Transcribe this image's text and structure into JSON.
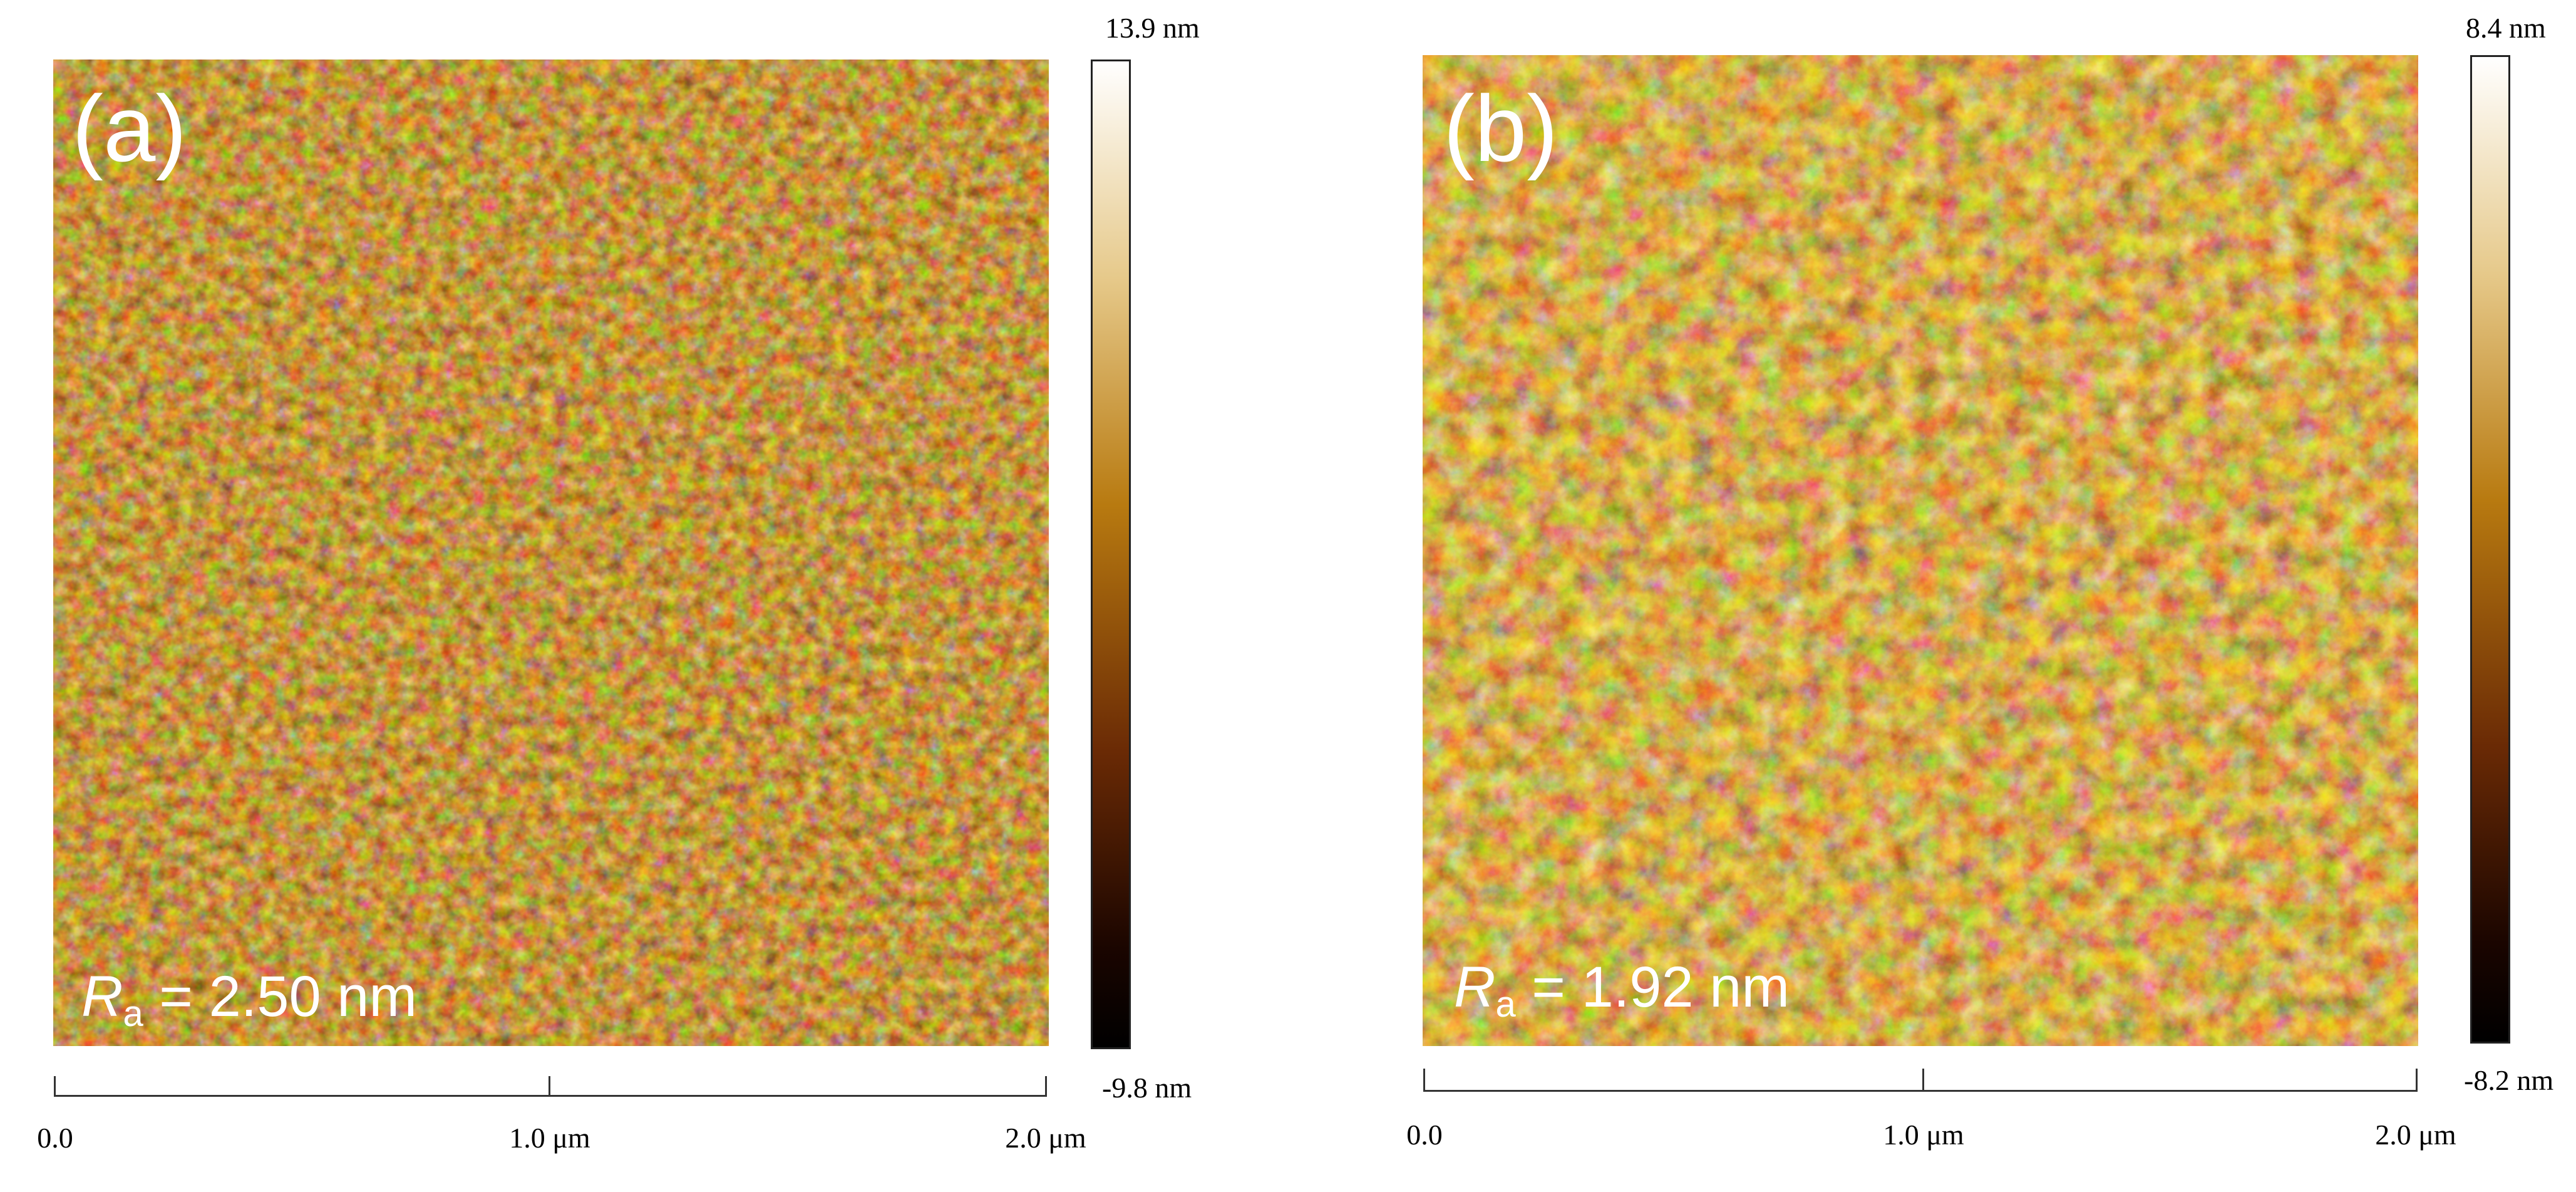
{
  "panels": [
    {
      "letter": "(a)",
      "ra_symbol": "R",
      "ra_subscript": "a",
      "ra_value": " = 2.50 nm",
      "colorbar_max": "13.9 nm",
      "colorbar_min": "-9.8 nm",
      "ticks": [
        "0.0",
        "1.0 μm",
        "2.0 μm"
      ]
    },
    {
      "letter": "(b)",
      "ra_symbol": "R",
      "ra_subscript": "a",
      "ra_value": " = 1.92 nm",
      "colorbar_max": "8.4 nm",
      "colorbar_min": "-8.2 nm",
      "ticks": [
        "0.0",
        "1.0 μm",
        "2.0 μm"
      ]
    }
  ],
  "colors": {
    "afm_dark": "#1a0800",
    "afm_mid": "#8a4a05",
    "afm_bright": "#f2d28a",
    "colorbar_top": "#ffffff",
    "colorbar_mid": "#b87a10",
    "colorbar_bottom": "#000000"
  }
}
